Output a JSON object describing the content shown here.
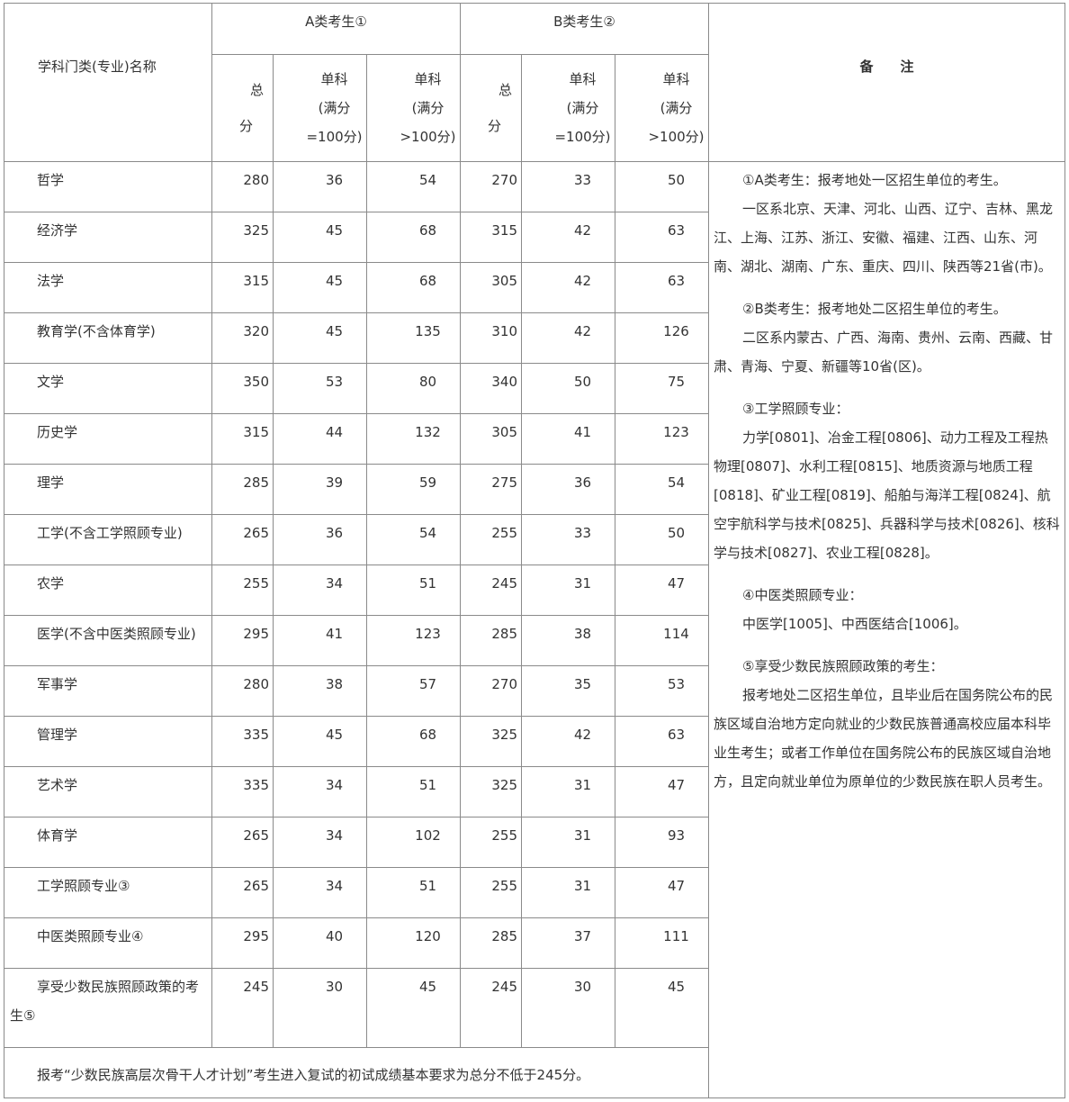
{
  "header": {
    "name_col": "学科门类(专业)名称",
    "group_a": "A类考生①",
    "group_b": "B类考生②",
    "notes_col": "备　　注",
    "total_line1": "总",
    "total_line2": "分",
    "single_100": [
      "单科",
      "(满分",
      "=100分)"
    ],
    "single_gt100": [
      "单科",
      "(满分",
      ">100分)"
    ]
  },
  "rows": [
    {
      "name": "哲学",
      "a_total": "280",
      "a_s100": "36",
      "a_sgt": "54",
      "b_total": "270",
      "b_s100": "33",
      "b_sgt": "50"
    },
    {
      "name": "经济学",
      "a_total": "325",
      "a_s100": "45",
      "a_sgt": "68",
      "b_total": "315",
      "b_s100": "42",
      "b_sgt": "63"
    },
    {
      "name": "法学",
      "a_total": "315",
      "a_s100": "45",
      "a_sgt": "68",
      "b_total": "305",
      "b_s100": "42",
      "b_sgt": "63"
    },
    {
      "name": "教育学(不含体育学)",
      "a_total": "320",
      "a_s100": "45",
      "a_sgt": "135",
      "b_total": "310",
      "b_s100": "42",
      "b_sgt": "126"
    },
    {
      "name": "文学",
      "a_total": "350",
      "a_s100": "53",
      "a_sgt": "80",
      "b_total": "340",
      "b_s100": "50",
      "b_sgt": "75"
    },
    {
      "name": "历史学",
      "a_total": "315",
      "a_s100": "44",
      "a_sgt": "132",
      "b_total": "305",
      "b_s100": "41",
      "b_sgt": "123"
    },
    {
      "name": "理学",
      "a_total": "285",
      "a_s100": "39",
      "a_sgt": "59",
      "b_total": "275",
      "b_s100": "36",
      "b_sgt": "54"
    },
    {
      "name": "工学(不含工学照顾专业)",
      "a_total": "265",
      "a_s100": "36",
      "a_sgt": "54",
      "b_total": "255",
      "b_s100": "33",
      "b_sgt": "50"
    },
    {
      "name": "农学",
      "a_total": "255",
      "a_s100": "34",
      "a_sgt": "51",
      "b_total": "245",
      "b_s100": "31",
      "b_sgt": "47"
    },
    {
      "name": "医学(不含中医类照顾专业)",
      "a_total": "295",
      "a_s100": "41",
      "a_sgt": "123",
      "b_total": "285",
      "b_s100": "38",
      "b_sgt": "114"
    },
    {
      "name": "军事学",
      "a_total": "280",
      "a_s100": "38",
      "a_sgt": "57",
      "b_total": "270",
      "b_s100": "35",
      "b_sgt": "53"
    },
    {
      "name": "管理学",
      "a_total": "335",
      "a_s100": "45",
      "a_sgt": "68",
      "b_total": "325",
      "b_s100": "42",
      "b_sgt": "63"
    },
    {
      "name": "艺术学",
      "a_total": "335",
      "a_s100": "34",
      "a_sgt": "51",
      "b_total": "325",
      "b_s100": "31",
      "b_sgt": "47"
    },
    {
      "name": "体育学",
      "a_total": "265",
      "a_s100": "34",
      "a_sgt": "102",
      "b_total": "255",
      "b_s100": "31",
      "b_sgt": "93"
    },
    {
      "name": "工学照顾专业③",
      "a_total": "265",
      "a_s100": "34",
      "a_sgt": "51",
      "b_total": "255",
      "b_s100": "31",
      "b_sgt": "47"
    },
    {
      "name": "中医类照顾专业④",
      "a_total": "295",
      "a_s100": "40",
      "a_sgt": "120",
      "b_total": "285",
      "b_s100": "37",
      "b_sgt": "111"
    },
    {
      "name": "享受少数民族照顾政策的考生⑤",
      "a_total": "245",
      "a_s100": "30",
      "a_sgt": "45",
      "b_total": "245",
      "b_s100": "30",
      "b_sgt": "45"
    }
  ],
  "footer": "报考“少数民族高层次骨干人才计划”考生进入复试的初试成绩基本要求为总分不低于245分。",
  "notes": [
    [
      "①A类考生：报考地处一区招生单位的考生。",
      "一区系北京、天津、河北、山西、辽宁、吉林、黑龙江、上海、江苏、浙江、安徽、福建、江西、山东、河南、湖北、湖南、广东、重庆、四川、陕西等21省(市)。"
    ],
    [
      "②B类考生：报考地处二区招生单位的考生。",
      "二区系内蒙古、广西、海南、贵州、云南、西藏、甘肃、青海、宁夏、新疆等10省(区)。"
    ],
    [
      "③工学照顾专业：",
      "力学[0801]、冶金工程[0806]、动力工程及工程热物理[0807]、水利工程[0815]、地质资源与地质工程[0818]、矿业工程[0819]、船舶与海洋工程[0824]、航空宇航科学与技术[0825]、兵器科学与技术[0826]、核科学与技术[0827]、农业工程[0828]。"
    ],
    [
      "④中医类照顾专业：",
      "中医学[1005]、中西医结合[1006]。"
    ],
    [
      "⑤享受少数民族照顾政策的考生：",
      "报考地处二区招生单位，且毕业后在国务院公布的民族区域自治地方定向就业的少数民族普通高校应届本科毕业生考生；或者工作单位在国务院公布的民族区域自治地方，且定向就业单位为原单位的少数民族在职人员考生。"
    ]
  ]
}
